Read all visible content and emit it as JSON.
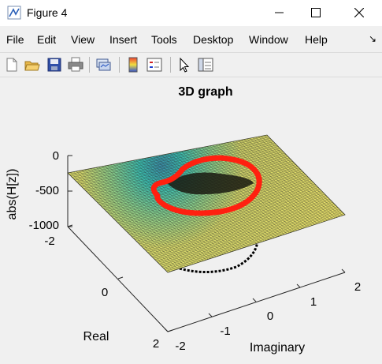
{
  "window": {
    "title": "Figure 4",
    "minimize_icon": "minimize-icon",
    "maximize_icon": "maximize-icon",
    "close_icon": "close-icon"
  },
  "menu": {
    "items": [
      "File",
      "Edit",
      "View",
      "Insert",
      "Tools",
      "Desktop",
      "Window",
      "Help"
    ],
    "dock_arrow": "↘"
  },
  "toolbar": {
    "icons": [
      "new-figure-icon",
      "open-file-icon",
      "save-icon",
      "print-icon",
      "link-plot-icon",
      "insert-colorbar-icon",
      "insert-legend-icon",
      "edit-plot-icon",
      "property-inspector-icon"
    ]
  },
  "plot": {
    "title": "3D graph",
    "zlabel": "abs(H[z])",
    "xlabel": "Real",
    "ylabel": "Imaginary",
    "zticks": [
      "0",
      "-500",
      "-1000"
    ],
    "real_ticks": [
      "-2",
      "0",
      "2"
    ],
    "imag_ticks": [
      "-2",
      "-1",
      "0",
      "1",
      "2"
    ],
    "colors": {
      "surface_high": "#e8e060",
      "surface_mid": "#3bbfb0",
      "unit_circle": "#ff2010",
      "projection": "#000000"
    }
  },
  "chart_data": {
    "type": "surface",
    "title": "3D graph",
    "xlabel": "Real",
    "ylabel": "Imaginary",
    "zlabel": "abs(H[z])",
    "x_range": [
      -2,
      2
    ],
    "y_range": [
      -2,
      2
    ],
    "z_range": [
      -1000,
      0
    ],
    "x_ticks": [
      -2,
      0,
      2
    ],
    "y_ticks": [
      -2,
      -1,
      0,
      1,
      2
    ],
    "z_ticks": [
      0,
      -500,
      -1000
    ],
    "series": [
      {
        "kind": "mesh-surface"
      },
      {
        "kind": "unit-circle-line"
      },
      {
        "kind": "projected-circle-dashed"
      }
    ]
  }
}
